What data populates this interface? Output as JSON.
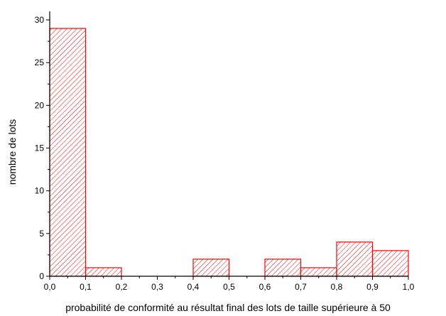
{
  "chart_data": {
    "type": "bar",
    "subtype": "histogram",
    "title": "",
    "xlabel": "probabilité de conformité au résultat final des lots de taille supérieure à 50",
    "ylabel": "nombre de lots",
    "xlim": [
      0.0,
      1.0
    ],
    "ylim": [
      0,
      31
    ],
    "x_ticks": [
      "0,0",
      "0,1",
      "0,2",
      "0,3",
      "0,4",
      "0,5",
      "0,6",
      "0,7",
      "0,8",
      "0,9",
      "1,0"
    ],
    "y_ticks": [
      "0",
      "5",
      "10",
      "15",
      "20",
      "25",
      "30"
    ],
    "bins": [
      {
        "from": 0.0,
        "to": 0.1,
        "value": 29
      },
      {
        "from": 0.1,
        "to": 0.2,
        "value": 1
      },
      {
        "from": 0.2,
        "to": 0.3,
        "value": 0
      },
      {
        "from": 0.3,
        "to": 0.4,
        "value": 0
      },
      {
        "from": 0.4,
        "to": 0.5,
        "value": 2
      },
      {
        "from": 0.5,
        "to": 0.6,
        "value": 0
      },
      {
        "from": 0.6,
        "to": 0.7,
        "value": 2
      },
      {
        "from": 0.7,
        "to": 0.8,
        "value": 1
      },
      {
        "from": 0.8,
        "to": 0.9,
        "value": 4
      },
      {
        "from": 0.9,
        "to": 1.0,
        "value": 3
      }
    ],
    "bar_color": "#ff0000",
    "fill": "diagonal-hatch",
    "grid": false,
    "legend": "none"
  }
}
